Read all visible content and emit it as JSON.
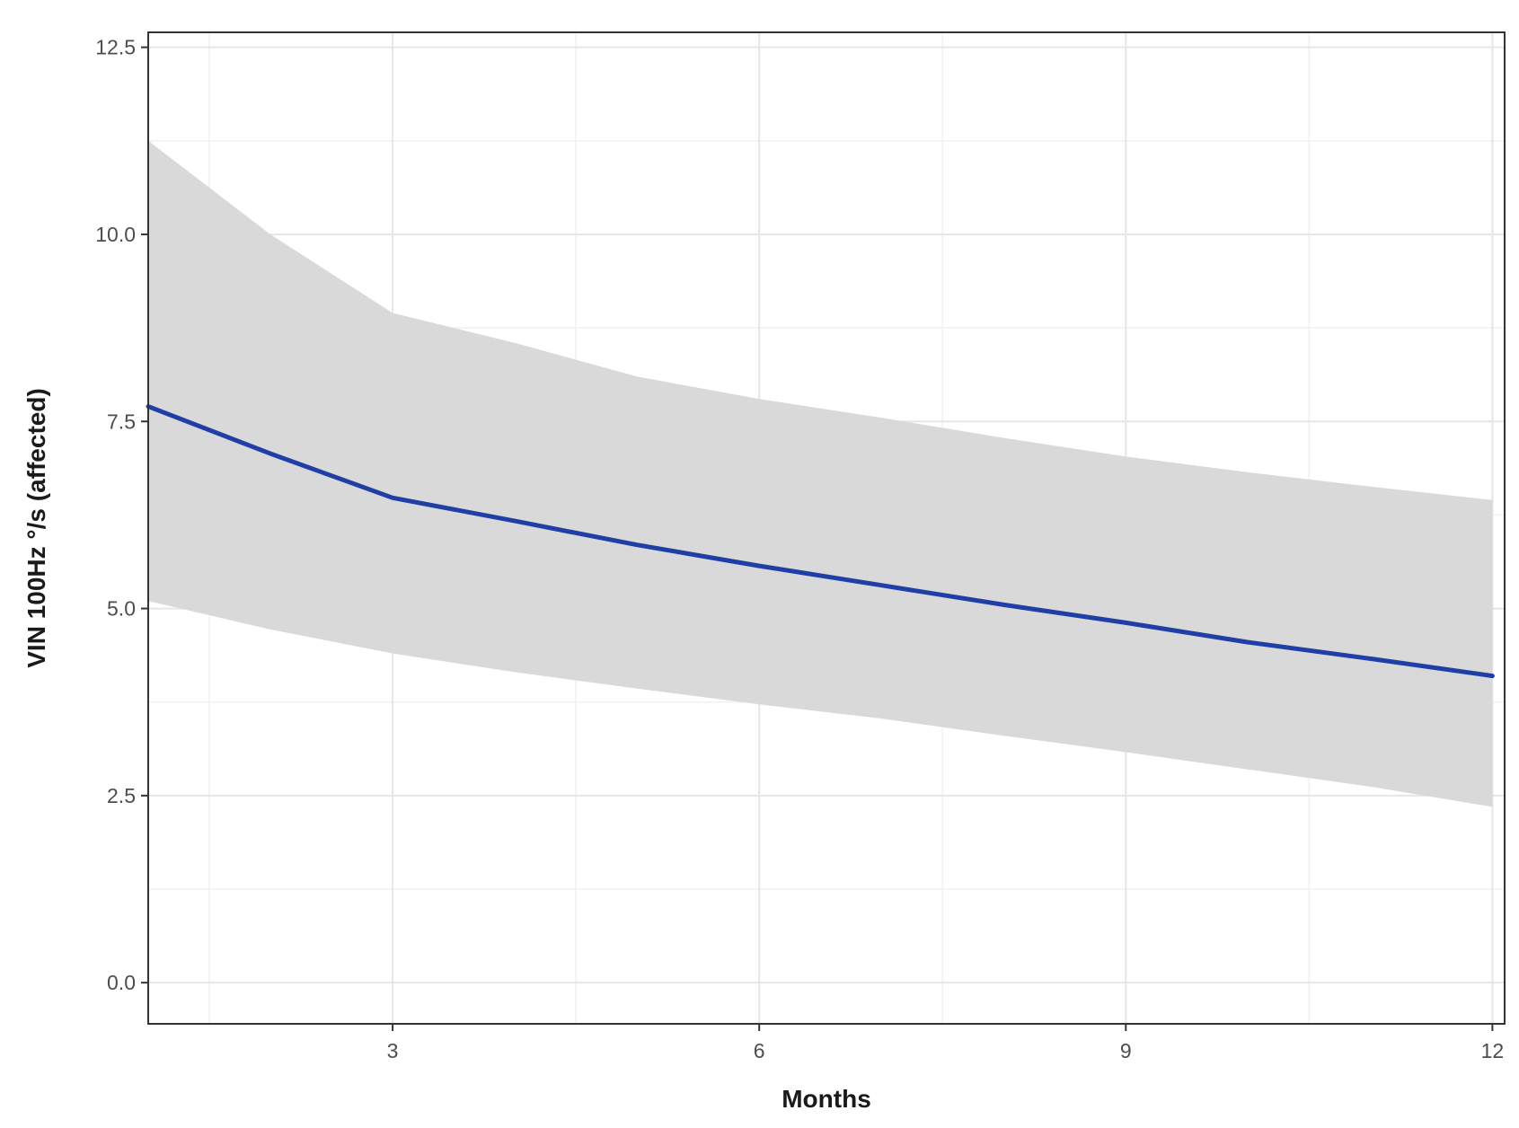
{
  "chart_data": {
    "type": "line",
    "title": "",
    "xlabel": "Months",
    "ylabel": "VIN 100Hz °/s (affected)",
    "xlim": [
      1.0,
      12.1
    ],
    "ylim": [
      -0.55,
      12.7
    ],
    "x_ticks": [
      3,
      6,
      9,
      12
    ],
    "x_tick_labels": [
      "3",
      "6",
      "9",
      "12"
    ],
    "x_minor_ticks": [
      1.5,
      4.5,
      7.5,
      10.5
    ],
    "y_ticks": [
      0.0,
      2.5,
      5.0,
      7.5,
      10.0,
      12.5
    ],
    "y_tick_labels": [
      "0.0",
      "2.5",
      "5.0",
      "7.5",
      "10.0",
      "12.5"
    ],
    "y_minor_ticks": [
      1.25,
      3.75,
      6.25,
      8.75,
      11.25
    ],
    "grid": true,
    "legend": "none",
    "series": [
      {
        "color": "#1f3fa6",
        "x": [
          1,
          2,
          3,
          4,
          5,
          6,
          7,
          8,
          9,
          10,
          11,
          12
        ],
        "y": [
          7.7,
          7.07,
          6.48,
          6.17,
          5.85,
          5.57,
          5.31,
          5.05,
          4.81,
          4.55,
          4.33,
          4.1
        ]
      }
    ],
    "confidence_band": {
      "color": "#d9d9d9",
      "x": [
        1,
        2,
        3,
        4,
        5,
        6,
        7,
        8,
        9,
        10,
        11,
        12
      ],
      "upper": [
        11.25,
        10.0,
        8.95,
        8.55,
        8.1,
        7.8,
        7.55,
        7.28,
        7.03,
        6.82,
        6.63,
        6.45
      ],
      "lower": [
        5.1,
        4.72,
        4.4,
        4.15,
        3.93,
        3.72,
        3.53,
        3.3,
        3.08,
        2.85,
        2.62,
        2.35
      ]
    }
  }
}
